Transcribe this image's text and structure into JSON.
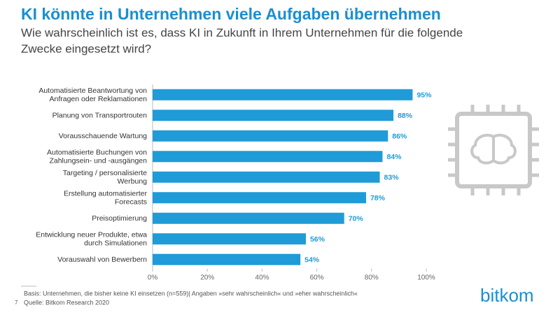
{
  "chart_data": {
    "type": "bar",
    "orientation": "horizontal",
    "title": "KI könnte in Unternehmen viele Aufgaben übernehmen",
    "subtitle": "Wie wahrscheinlich ist es, dass KI in Zukunft in Ihrem Unternehmen für die folgende\nZwecke eingesetzt wird?",
    "categories": [
      "Automatisierte Beantwortung von\nAnfragen oder Reklamationen",
      "Planung von Transportrouten",
      "Vorausschauende Wartung",
      "Automatisierte Buchungen von\nZahlungsein- und -ausgängen",
      "Targeting / personalisierte\nWerbung",
      "Erstellung automatisierter\nForecasts",
      "Preisoptimierung",
      "Entwicklung neuer Produkte, etwa\ndurch Simulationen",
      "Vorauswahl von Bewerbern"
    ],
    "values": [
      95,
      88,
      86,
      84,
      83,
      78,
      70,
      56,
      54
    ],
    "value_labels": [
      "95%",
      "88%",
      "86%",
      "84%",
      "83%",
      "78%",
      "70%",
      "56%",
      "54%"
    ],
    "color": "#1f9bd7",
    "xlim": [
      0,
      100
    ],
    "xticks": [
      {
        "value": 0,
        "label": "0%"
      },
      {
        "value": 20,
        "label": "20%"
      },
      {
        "value": 40,
        "label": "40%"
      },
      {
        "value": 60,
        "label": "60%"
      },
      {
        "value": 80,
        "label": "80%"
      },
      {
        "value": 100,
        "label": "100%"
      }
    ],
    "grid": false,
    "footnote": "Basis: Unternehmen, die bisher keine KI einsetzen (n=559)| Angaben »sehr wahrscheinlich« und »eher wahrscheinlich«",
    "source": "Quelle: Bitkom Research 2020",
    "page_number": "7",
    "logo": "bitkom"
  }
}
